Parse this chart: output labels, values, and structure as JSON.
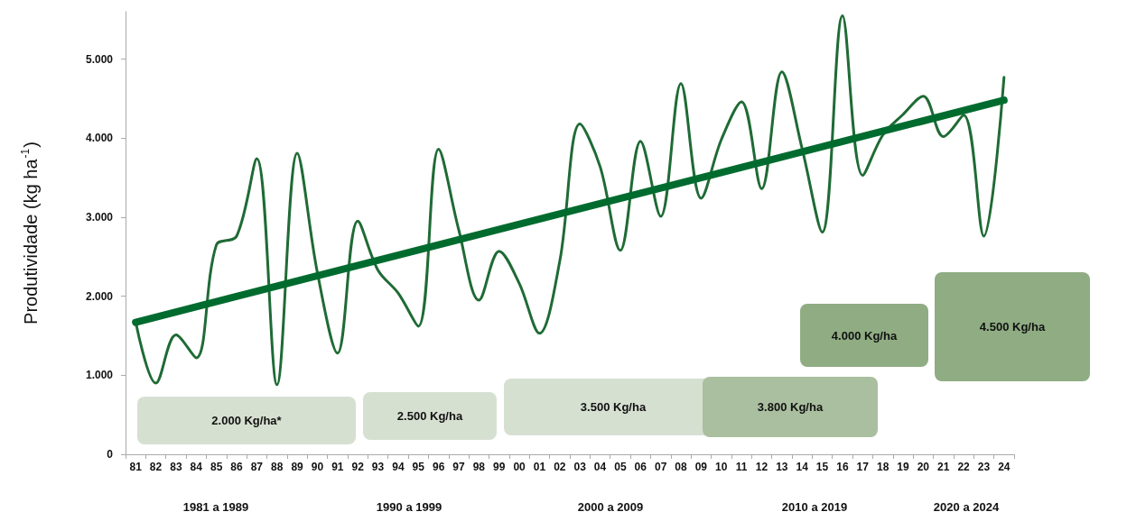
{
  "chart_data": {
    "type": "line",
    "ylabel": "Produtividade (kg ha$^{-1}$)",
    "categories": [
      "81",
      "82",
      "83",
      "84",
      "85",
      "86",
      "87",
      "88",
      "89",
      "90",
      "91",
      "92",
      "93",
      "94",
      "95",
      "96",
      "97",
      "98",
      "99",
      "00",
      "01",
      "02",
      "03",
      "04",
      "05",
      "06",
      "07",
      "08",
      "09",
      "10",
      "11",
      "12",
      "13",
      "14",
      "15",
      "16",
      "17",
      "18",
      "19",
      "20",
      "21",
      "22",
      "23",
      "24"
    ],
    "series": [
      {
        "color": "#1f6b35",
        "values": [
          1680,
          900,
          1510,
          1220,
          2650,
          2760,
          3740,
          880,
          3810,
          2300,
          1280,
          2950,
          2330,
          2040,
          1620,
          3860,
          2840,
          1950,
          2570,
          2160,
          1530,
          2440,
          4180,
          3640,
          2580,
          3960,
          3010,
          4690,
          3240,
          3980,
          4460,
          3360,
          4840,
          3870,
          2810,
          5550,
          3530,
          4040,
          4300,
          4530,
          4020,
          4290,
          2760,
          4770
        ]
      },
      {
        "color": "#006b2e",
        "values": [
          1670,
          null,
          null,
          null,
          null,
          null,
          null,
          null,
          null,
          null,
          null,
          null,
          null,
          null,
          null,
          null,
          null,
          null,
          null,
          null,
          null,
          null,
          null,
          null,
          null,
          null,
          null,
          null,
          null,
          null,
          null,
          null,
          null,
          null,
          null,
          null,
          null,
          null,
          null,
          null,
          null,
          null,
          null,
          4480
        ]
      }
    ],
    "ylim": [
      0,
      5600
    ],
    "yticks": [
      0,
      {
        "value": 1000,
        "label": "1.000"
      },
      {
        "value": 2000,
        "label": "2.000"
      },
      {
        "value": 3000,
        "label": "3.000"
      },
      {
        "value": 4000,
        "label": "4.000"
      },
      {
        "value": 5000,
        "label": "5.000"
      }
    ],
    "grid": false,
    "marker": "none",
    "line_style": "solid",
    "annotations": [
      "2.000 Kg/ha*",
      "2.500 Kg/ha",
      "3.500 Kg/ha",
      "3.800 Kg/ha",
      "4.000 Kg/ha",
      "4.500 Kg/ha",
      "1981 a 1989",
      "1990 a 1999",
      "2000 a 2009",
      "2010 a 2019",
      "2020 a 2024"
    ]
  }
}
